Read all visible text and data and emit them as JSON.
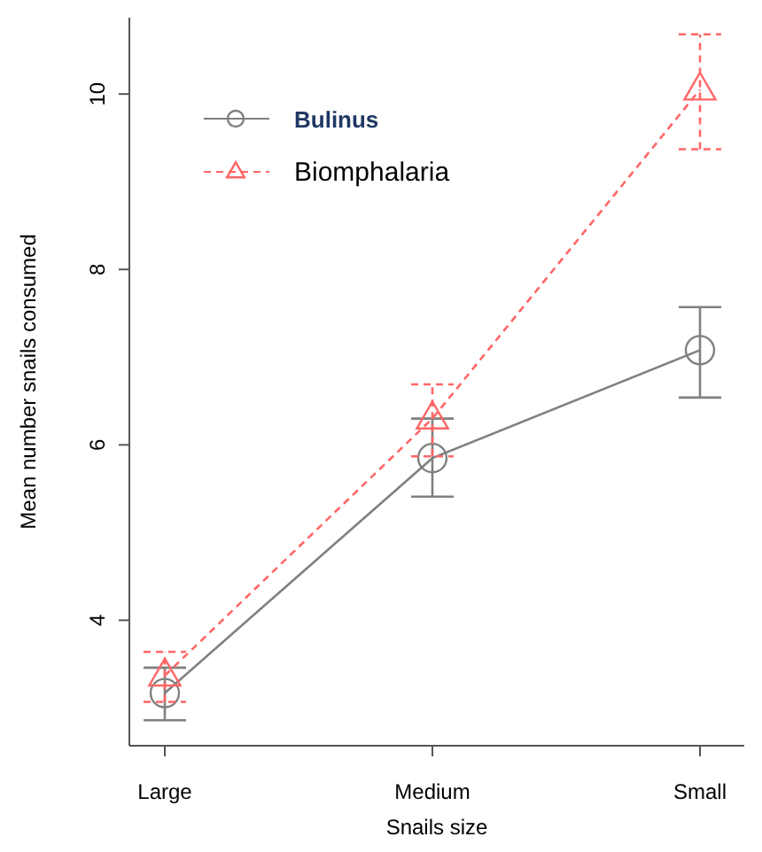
{
  "chart_data": {
    "type": "line",
    "xlabel": "Snails size",
    "ylabel": "Mean number snails consumed",
    "categories": [
      "Large",
      "Medium",
      "Small"
    ],
    "ylim": [
      2.57,
      10.87
    ],
    "yticks": [
      4,
      6,
      8,
      10
    ],
    "grid": false,
    "legend": "top left",
    "series": [
      {
        "name": "Bulinus",
        "color": "#808080",
        "marker": "circle",
        "line_style": "solid",
        "values": [
          3.17,
          5.85,
          7.08
        ],
        "errors": [
          [
            2.86,
            3.46
          ],
          [
            5.41,
            6.3
          ],
          [
            6.54,
            7.57
          ]
        ]
      },
      {
        "name": "Biomphalaria",
        "color": "#ff6666",
        "marker": "triangle",
        "line_style": "dashed",
        "values": [
          3.37,
          6.3,
          10.05
        ],
        "errors": [
          [
            3.07,
            3.64
          ],
          [
            5.87,
            6.69
          ],
          [
            9.37,
            10.68
          ]
        ]
      }
    ]
  }
}
